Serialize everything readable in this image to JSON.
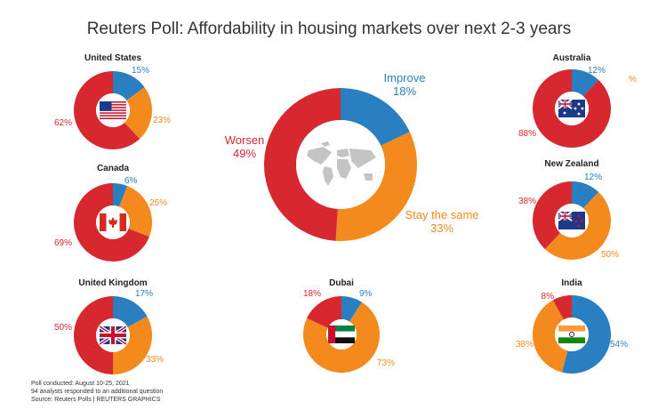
{
  "title": "Reuters Poll: Affordability in housing markets over next 2-3 years",
  "colors": {
    "improve": "#2a7fc1",
    "stay": "#f48a1e",
    "worsen": "#d7282f",
    "map": "#c4c4c4"
  },
  "chart_data": {
    "type": "pie",
    "title": "Reuters Poll: Affordability in housing markets over next 2-3 years",
    "categories": [
      "Improve",
      "Stay the same",
      "Worsen"
    ],
    "charts": [
      {
        "id": "global",
        "name": "",
        "flag": "world-map",
        "improve": 18,
        "stay": 33,
        "worsen": 49
      },
      {
        "id": "us",
        "name": "United States",
        "flag": "us-flag",
        "improve": 15,
        "stay": 23,
        "worsen": 62
      },
      {
        "id": "canada",
        "name": "Canada",
        "flag": "canada-flag",
        "improve": 6,
        "stay": 25,
        "worsen": 69
      },
      {
        "id": "uk",
        "name": "United Kingdom",
        "flag": "uk-flag",
        "improve": 17,
        "stay": 33,
        "worsen": 50
      },
      {
        "id": "dubai",
        "name": "Dubai",
        "flag": "uae-flag",
        "improve": 9,
        "stay": 73,
        "worsen": 18
      },
      {
        "id": "australia",
        "name": "Australia",
        "flag": "australia-flag",
        "improve": 12,
        "stay": 0,
        "worsen": 88
      },
      {
        "id": "nz",
        "name": "New Zealand",
        "flag": "nz-flag",
        "improve": 12,
        "stay": 50,
        "worsen": 38
      },
      {
        "id": "india",
        "name": "India",
        "flag": "india-flag",
        "improve": 54,
        "stay": 38,
        "worsen": 8
      }
    ],
    "labels": {
      "global": {
        "improve": "Improve",
        "improve_pct": "18%",
        "stay": "Stay the same",
        "stay_pct": "33%",
        "worsen": "Worsen",
        "worsen_pct": "49%"
      },
      "us": {
        "improve": "15%",
        "stay": "23%",
        "worsen": "62%"
      },
      "canada": {
        "improve": "6%",
        "stay": "25%",
        "worsen": "69%"
      },
      "uk": {
        "improve": "17%",
        "stay": "33%",
        "worsen": "50%"
      },
      "dubai": {
        "improve": "9%",
        "stay": "73%",
        "worsen": "18%"
      },
      "australia": {
        "improve": "12%",
        "stay": "%",
        "worsen": "88%"
      },
      "nz": {
        "improve": "12%",
        "stay": "50%",
        "worsen": "38%"
      },
      "india": {
        "improve": "54%",
        "stay": "38%",
        "worsen": "8%"
      }
    }
  },
  "footnote": {
    "line1": "Poll conducted: August 10-25, 2021",
    "line2": "94 analysts responded to an additional question",
    "line3": "Source: Reuters Polls  | REUTERS GRAPHICS"
  }
}
